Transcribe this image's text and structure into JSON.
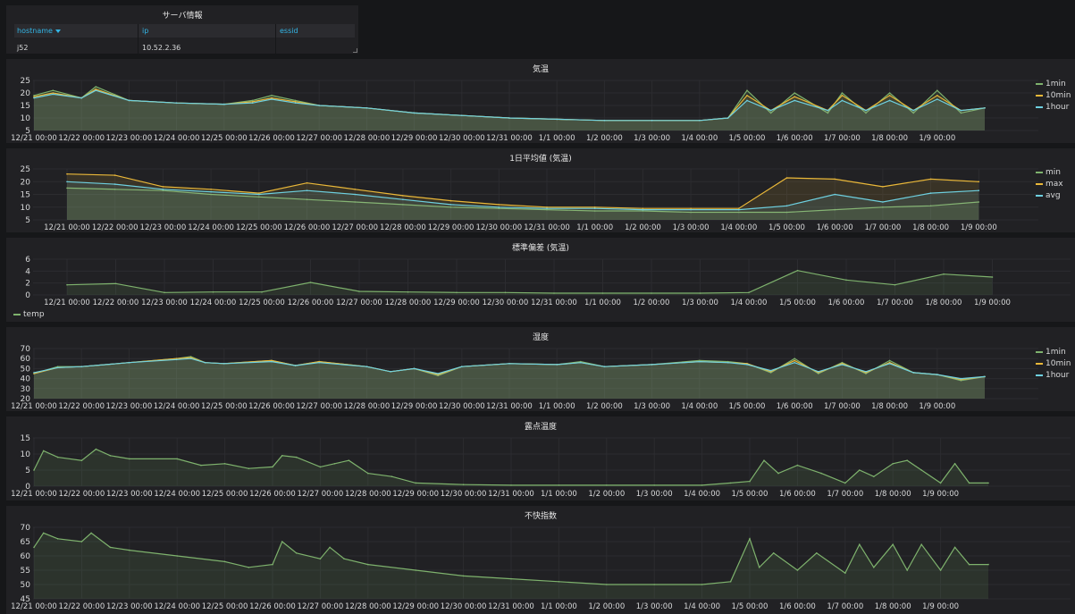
{
  "server_table": {
    "title": "サーバ情報",
    "columns": [
      "hostname",
      "ip",
      "essid"
    ],
    "rows": [
      [
        "j52",
        "10.52.2.36",
        ""
      ]
    ]
  },
  "x_labels": [
    "12/21 00:00",
    "12/22 00:00",
    "12/23 00:00",
    "12/24 00:00",
    "12/25 00:00",
    "12/26 00:00",
    "12/27 00:00",
    "12/28 00:00",
    "12/29 00:00",
    "12/30 00:00",
    "12/31 00:00",
    "1/1 00:00",
    "1/2 00:00",
    "1/3 00:00",
    "1/4 00:00",
    "1/5 00:00",
    "1/6 00:00",
    "1/7 00:00",
    "1/8 00:00",
    "1/9 00:00"
  ],
  "colors": {
    "green": "#7eb26d",
    "yellow": "#eab839",
    "cyan": "#6ed0e0",
    "grid": "#2c2c30",
    "tick_text": "#d8d9da"
  },
  "chart_data": [
    {
      "type": "line",
      "title": "気温",
      "yticks": [
        5,
        10,
        15,
        20,
        25
      ],
      "ylim": [
        5,
        25
      ],
      "legend_position": "right",
      "x_days": [
        0,
        0.4,
        1,
        1.3,
        2,
        3,
        4,
        4.6,
        5,
        5.5,
        6,
        7,
        8,
        9,
        10,
        11,
        12,
        13,
        14,
        14.6,
        15,
        15.5,
        16,
        16.7,
        17,
        17.5,
        18,
        18.5,
        19,
        19.5,
        20
      ],
      "series": [
        {
          "name": "1min",
          "color": "#7eb26d",
          "values": [
            19,
            21,
            18,
            22.5,
            17,
            16,
            15.5,
            17,
            19,
            17,
            15,
            14,
            12,
            11,
            10,
            9.5,
            9,
            9,
            9,
            10,
            21,
            12,
            20,
            12,
            20,
            12,
            20,
            12,
            21,
            12,
            14
          ]
        },
        {
          "name": "10min",
          "color": "#eab839",
          "values": [
            18.5,
            20,
            18,
            21.5,
            17,
            16,
            15.5,
            16.5,
            18,
            16.5,
            15,
            14,
            12,
            11,
            10,
            9.5,
            9,
            9,
            9,
            10,
            19,
            13,
            18.5,
            13,
            19,
            13,
            19,
            13,
            19,
            13,
            14
          ]
        },
        {
          "name": "1hour",
          "color": "#6ed0e0",
          "values": [
            18,
            19.5,
            18,
            21,
            17,
            16,
            15.5,
            16,
            17.5,
            16,
            15,
            14,
            12,
            11,
            10,
            9.5,
            9,
            9,
            9,
            10,
            17,
            13,
            17,
            13,
            17,
            13,
            17,
            13,
            17.5,
            13,
            14
          ]
        }
      ]
    },
    {
      "type": "line",
      "title": "1日平均値 (気温)",
      "yticks": [
        5,
        10,
        15,
        20,
        25
      ],
      "ylim": [
        5,
        25
      ],
      "legend_position": "right",
      "x_days": [
        0,
        1,
        2,
        3,
        4,
        5,
        6,
        7,
        8,
        9,
        10,
        11,
        12,
        13,
        14,
        15,
        16,
        17,
        18,
        19
      ],
      "series": [
        {
          "name": "min",
          "color": "#7eb26d",
          "values": [
            17.5,
            17,
            16.5,
            15,
            14,
            13,
            12,
            11,
            10,
            9.5,
            9,
            8.5,
            8.5,
            8,
            8,
            8,
            9,
            10,
            10.5,
            12
          ]
        },
        {
          "name": "max",
          "color": "#eab839",
          "values": [
            23,
            22.5,
            18,
            17,
            15.5,
            19.5,
            17,
            14.5,
            12.5,
            11,
            10,
            10,
            9.5,
            9.5,
            9.5,
            21.5,
            21,
            18,
            21,
            20
          ]
        },
        {
          "name": "avg",
          "color": "#6ed0e0",
          "values": [
            20,
            19,
            17,
            16,
            15,
            16.5,
            15,
            13,
            11,
            10,
            9.5,
            9.5,
            9,
            9,
            9,
            10.5,
            15,
            12,
            15.5,
            16.5
          ]
        }
      ]
    },
    {
      "type": "line",
      "title": "標準偏差 (気温)",
      "yticks": [
        0,
        2,
        4,
        6
      ],
      "ylim": [
        0,
        6
      ],
      "legend_position": "bottom",
      "x_days": [
        0,
        1,
        2,
        3,
        4,
        5,
        6,
        7,
        8,
        9,
        10,
        11,
        12,
        13,
        14,
        15,
        16,
        17,
        18,
        19
      ],
      "series": [
        {
          "name": "temp",
          "color": "#7eb26d",
          "values": [
            1.7,
            1.9,
            0.4,
            0.5,
            0.5,
            2.1,
            0.6,
            0.5,
            0.4,
            0.4,
            0.3,
            0.3,
            0.3,
            0.3,
            0.4,
            4.1,
            2.5,
            1.7,
            3.5,
            3.0
          ]
        }
      ]
    },
    {
      "type": "line",
      "title": "湿度",
      "yticks": [
        20,
        30,
        40,
        50,
        60,
        70
      ],
      "ylim": [
        20,
        70
      ],
      "legend_position": "right",
      "x_days": [
        0,
        0.5,
        1,
        2,
        3,
        3.3,
        3.6,
        4,
        5,
        5.5,
        6,
        7,
        7.5,
        8,
        8.5,
        9,
        10,
        11,
        11.5,
        12,
        13,
        14,
        14.6,
        15,
        15.5,
        16,
        16.5,
        17,
        17.5,
        18,
        18.5,
        19,
        19.5,
        20
      ],
      "series": [
        {
          "name": "1min",
          "color": "#7eb26d",
          "values": [
            45,
            52,
            52,
            56,
            60,
            62,
            56,
            55,
            58,
            53,
            57,
            52,
            47,
            50,
            43,
            52,
            55,
            54,
            57,
            52,
            54,
            58,
            57,
            55,
            46,
            60,
            45,
            56,
            45,
            58,
            46,
            44,
            38,
            42
          ]
        },
        {
          "name": "10min",
          "color": "#eab839",
          "values": [
            45,
            51,
            52,
            56,
            60,
            61,
            56,
            55,
            58,
            53,
            57,
            52,
            47,
            50,
            44,
            52,
            55,
            54,
            56,
            52,
            54,
            57,
            56,
            55,
            47,
            58,
            46,
            55,
            46,
            56,
            46,
            44,
            39,
            42
          ]
        },
        {
          "name": "1hour",
          "color": "#6ed0e0",
          "values": [
            46,
            51,
            52,
            56,
            59,
            60,
            56,
            55,
            57,
            53,
            56,
            52,
            47,
            50,
            45,
            52,
            55,
            54,
            56,
            52,
            54,
            57,
            56,
            54,
            48,
            56,
            47,
            54,
            47,
            55,
            46,
            44,
            40,
            42
          ]
        }
      ]
    },
    {
      "type": "area",
      "title": "露点温度",
      "yticks": [
        0,
        5,
        10,
        15
      ],
      "ylim": [
        0,
        15
      ],
      "x_days": [
        0,
        0.2,
        0.5,
        1,
        1.3,
        1.6,
        2,
        3,
        3.5,
        4,
        4.5,
        5,
        5.2,
        5.5,
        6,
        6.3,
        6.6,
        7,
        7.5,
        8,
        9,
        10,
        11,
        12,
        13,
        14,
        14.6,
        15,
        15.3,
        15.6,
        16,
        16.5,
        17,
        17.3,
        17.6,
        18,
        18.3,
        18.6,
        19,
        19.3,
        19.6,
        20
      ],
      "series": [
        {
          "name": "",
          "color": "#7eb26d",
          "values": [
            5,
            11,
            9,
            8,
            11.5,
            9.5,
            8.5,
            8.5,
            6.5,
            7,
            5.5,
            6,
            9.5,
            9,
            6,
            7,
            8,
            4,
            3,
            1,
            0.5,
            0.3,
            0.3,
            0.3,
            0.3,
            0.3,
            1,
            1.5,
            8,
            4,
            6.5,
            4,
            1,
            5,
            3,
            7,
            8,
            5,
            1,
            7,
            1,
            1
          ]
        }
      ]
    },
    {
      "type": "area",
      "title": "不快指数",
      "yticks": [
        45,
        50,
        55,
        60,
        65,
        70
      ],
      "ylim": [
        45,
        70
      ],
      "x_days": [
        0,
        0.2,
        0.5,
        1,
        1.2,
        1.6,
        2,
        3,
        4,
        4.5,
        5,
        5.2,
        5.5,
        6,
        6.2,
        6.5,
        7,
        8,
        9,
        10,
        11,
        12,
        13,
        14,
        14.6,
        15,
        15.2,
        15.5,
        16,
        16.4,
        17,
        17.3,
        17.6,
        18,
        18.3,
        18.6,
        19,
        19.3,
        19.6,
        20
      ],
      "series": [
        {
          "name": "",
          "color": "#7eb26d",
          "values": [
            63,
            68,
            66,
            65,
            68,
            63,
            62,
            60,
            58,
            56,
            57,
            65,
            61,
            59,
            63,
            59,
            57,
            55,
            53,
            52,
            51,
            50,
            50,
            50,
            51,
            66,
            56,
            61,
            55,
            61,
            54,
            64,
            56,
            64,
            55,
            64,
            55,
            63,
            57,
            57
          ]
        }
      ]
    }
  ]
}
